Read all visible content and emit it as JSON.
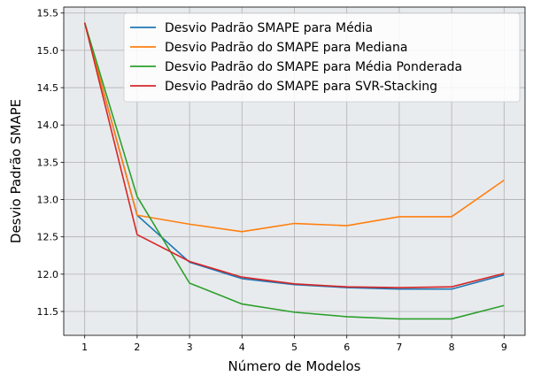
{
  "chart_data": {
    "type": "line",
    "xlabel": "Número de Modelos",
    "ylabel": "Desvio Padrão SMAPE",
    "x": [
      1,
      2,
      3,
      4,
      5,
      6,
      7,
      8,
      9
    ],
    "x_ticks": [
      "1",
      "2",
      "3",
      "4",
      "5",
      "6",
      "7",
      "8",
      "9"
    ],
    "y_ticks": [
      "11.5",
      "12.0",
      "12.5",
      "13.0",
      "13.5",
      "14.0",
      "14.5",
      "15.0",
      "15.5"
    ],
    "y_tick_values": [
      11.5,
      12.0,
      12.5,
      13.0,
      13.5,
      14.0,
      14.5,
      15.0,
      15.5
    ],
    "xlim": [
      0.6,
      9.4
    ],
    "ylim": [
      11.18,
      15.58
    ],
    "grid": true,
    "legend_position": "top-right",
    "background_color": "#e8ebee",
    "series": [
      {
        "name": "Desvio Padrão SMAPE para Média",
        "color": "#1f77b4",
        "values": [
          15.37,
          12.79,
          12.16,
          11.94,
          11.86,
          11.82,
          11.8,
          11.8,
          11.99
        ]
      },
      {
        "name": "Desvio Padrão do SMAPE para Mediana",
        "color": "#ff7f0e",
        "values": [
          15.37,
          12.79,
          12.67,
          12.57,
          12.68,
          12.65,
          12.77,
          12.77,
          13.26
        ]
      },
      {
        "name": "Desvio Padrão do SMAPE para Média Ponderada",
        "color": "#2ca02c",
        "values": [
          15.37,
          13.04,
          11.88,
          11.6,
          11.49,
          11.43,
          11.4,
          11.4,
          11.58
        ]
      },
      {
        "name": "Desvio Padrão do SMAPE para SVR-Stacking",
        "color": "#d62728",
        "values": [
          15.37,
          12.53,
          12.17,
          11.96,
          11.87,
          11.83,
          11.82,
          11.83,
          12.01
        ]
      }
    ]
  }
}
